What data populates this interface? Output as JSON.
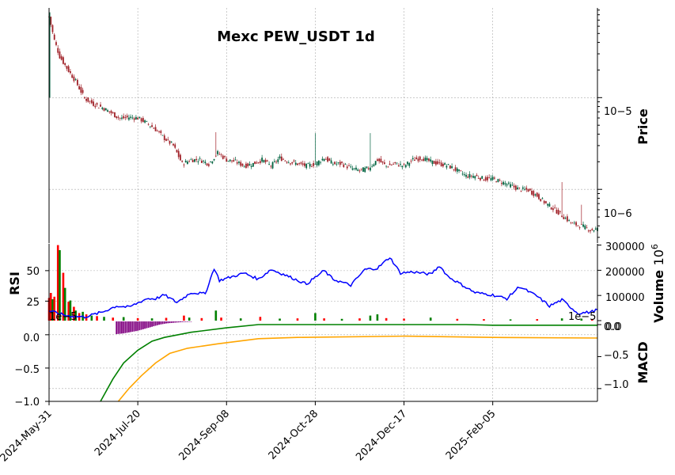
{
  "chart_data": {
    "type": "candlestick",
    "title": "Mexc PEW_USDT 1d",
    "x_tick_labels": [
      "2024-May-31",
      "2024-Jul-20",
      "2024-Sep-08",
      "2024-Oct-28",
      "2024-Dec-17",
      "2025-Feb-05"
    ],
    "price_panel": {
      "ylabel": "Price",
      "scale": "log",
      "ylim": [
        2.6e-07,
        9.5e-05
      ],
      "y_tick_labels": [
        "10−5",
        "10−6"
      ],
      "up_color": "#006340",
      "down_color": "#a02128",
      "series": [
        {
          "day": 0,
          "close": 7.6e-05
        },
        {
          "day": 3,
          "close": 4.2e-05
        },
        {
          "day": 6,
          "close": 2.8e-05
        },
        {
          "day": 10,
          "close": 2.1e-05
        },
        {
          "day": 15,
          "close": 1.5e-05
        },
        {
          "day": 20,
          "close": 9.8e-06
        },
        {
          "day": 25,
          "close": 8.5e-06
        },
        {
          "day": 30,
          "close": 7.8e-06
        },
        {
          "day": 35,
          "close": 6.8e-06
        },
        {
          "day": 40,
          "close": 5.9e-06
        },
        {
          "day": 45,
          "close": 6.1e-06
        },
        {
          "day": 50,
          "close": 6e-06
        },
        {
          "day": 55,
          "close": 5.3e-06
        },
        {
          "day": 60,
          "close": 4.5e-06
        },
        {
          "day": 65,
          "close": 3.6e-06
        },
        {
          "day": 70,
          "close": 3e-06
        },
        {
          "day": 75,
          "close": 1.9e-06
        },
        {
          "day": 80,
          "close": 2.1e-06
        },
        {
          "day": 85,
          "close": 2.1e-06
        },
        {
          "day": 90,
          "close": 1.9e-06
        },
        {
          "day": 95,
          "close": 2.5e-06
        },
        {
          "day": 100,
          "close": 2.1e-06
        },
        {
          "day": 105,
          "close": 2e-06
        },
        {
          "day": 110,
          "close": 1.8e-06
        },
        {
          "day": 115,
          "close": 1.9e-06
        },
        {
          "day": 120,
          "close": 2.1e-06
        },
        {
          "day": 125,
          "close": 1.8e-06
        },
        {
          "day": 130,
          "close": 2.2e-06
        },
        {
          "day": 135,
          "close": 2e-06
        },
        {
          "day": 140,
          "close": 1.9e-06
        },
        {
          "day": 145,
          "close": 1.8e-06
        },
        {
          "day": 150,
          "close": 1.9e-06
        },
        {
          "day": 155,
          "close": 2.2e-06
        },
        {
          "day": 160,
          "close": 1.9e-06
        },
        {
          "day": 165,
          "close": 1.9e-06
        },
        {
          "day": 170,
          "close": 1.7e-06
        },
        {
          "day": 175,
          "close": 1.6e-06
        },
        {
          "day": 180,
          "close": 1.7e-06
        },
        {
          "day": 185,
          "close": 2.1e-06
        },
        {
          "day": 190,
          "close": 1.8e-06
        },
        {
          "day": 195,
          "close": 1.9e-06
        },
        {
          "day": 200,
          "close": 1.8e-06
        },
        {
          "day": 205,
          "close": 2.1e-06
        },
        {
          "day": 210,
          "close": 2.2e-06
        },
        {
          "day": 215,
          "close": 2e-06
        },
        {
          "day": 220,
          "close": 1.9e-06
        },
        {
          "day": 225,
          "close": 1.8e-06
        },
        {
          "day": 230,
          "close": 1.6e-06
        },
        {
          "day": 235,
          "close": 1.4e-06
        },
        {
          "day": 240,
          "close": 1.4e-06
        },
        {
          "day": 245,
          "close": 1.3e-06
        },
        {
          "day": 250,
          "close": 1.3e-06
        },
        {
          "day": 255,
          "close": 1.2e-06
        },
        {
          "day": 260,
          "close": 1.1e-06
        },
        {
          "day": 265,
          "close": 1e-06
        },
        {
          "day": 270,
          "close": 9.8e-07
        },
        {
          "day": 275,
          "close": 8.5e-07
        },
        {
          "day": 280,
          "close": 7e-07
        },
        {
          "day": 285,
          "close": 6e-07
        },
        {
          "day": 290,
          "close": 5e-07
        },
        {
          "day": 295,
          "close": 4.2e-07
        },
        {
          "day": 300,
          "close": 4e-07
        },
        {
          "day": 305,
          "close": 3.6e-07
        },
        {
          "day": 309,
          "close": 3.7e-07
        }
      ],
      "spikes": [
        {
          "day": 94,
          "high": 4.2e-06
        },
        {
          "day": 150,
          "high": 4.1e-06
        },
        {
          "day": 181,
          "high": 4.1e-06
        },
        {
          "day": 289,
          "high": 1.2e-06
        },
        {
          "day": 300,
          "high": 6.8e-07
        }
      ]
    },
    "rsi_panel": {
      "ylabel": "RSI",
      "ylim": [
        9,
        72
      ],
      "y_tick_labels": [
        "25",
        "50"
      ],
      "color": "#0000ff",
      "series": [
        {
          "day": 0,
          "value": 17
        },
        {
          "day": 10,
          "value": 13
        },
        {
          "day": 20,
          "value": 12
        },
        {
          "day": 30,
          "value": 16
        },
        {
          "day": 38,
          "value": 21
        },
        {
          "day": 45,
          "value": 20
        },
        {
          "day": 55,
          "value": 27
        },
        {
          "day": 60,
          "value": 27
        },
        {
          "day": 65,
          "value": 30
        },
        {
          "day": 72,
          "value": 24
        },
        {
          "day": 80,
          "value": 32
        },
        {
          "day": 88,
          "value": 31
        },
        {
          "day": 93,
          "value": 52
        },
        {
          "day": 96,
          "value": 42
        },
        {
          "day": 103,
          "value": 45
        },
        {
          "day": 110,
          "value": 48
        },
        {
          "day": 118,
          "value": 43
        },
        {
          "day": 125,
          "value": 51
        },
        {
          "day": 132,
          "value": 47
        },
        {
          "day": 137,
          "value": 44
        },
        {
          "day": 145,
          "value": 39
        },
        {
          "day": 155,
          "value": 50
        },
        {
          "day": 160,
          "value": 43
        },
        {
          "day": 170,
          "value": 38
        },
        {
          "day": 178,
          "value": 51
        },
        {
          "day": 185,
          "value": 52
        },
        {
          "day": 192,
          "value": 61
        },
        {
          "day": 198,
          "value": 48
        },
        {
          "day": 205,
          "value": 49
        },
        {
          "day": 215,
          "value": 47
        },
        {
          "day": 220,
          "value": 54
        },
        {
          "day": 225,
          "value": 45
        },
        {
          "day": 233,
          "value": 38
        },
        {
          "day": 240,
          "value": 32
        },
        {
          "day": 250,
          "value": 30
        },
        {
          "day": 258,
          "value": 27
        },
        {
          "day": 265,
          "value": 37
        },
        {
          "day": 275,
          "value": 29
        },
        {
          "day": 282,
          "value": 21
        },
        {
          "day": 289,
          "value": 26
        },
        {
          "day": 298,
          "value": 15
        },
        {
          "day": 305,
          "value": 16
        },
        {
          "day": 309,
          "value": 18
        }
      ]
    },
    "volume_panel": {
      "ylabel": "Volume",
      "exponent_label": "10",
      "exponent_power": "6",
      "ylim": [
        0,
        305000
      ],
      "y_tick_labels": [
        "0.0",
        "100000",
        "200000",
        "300000"
      ],
      "up_color": "#008000",
      "down_color": "#ff0000",
      "bars": [
        {
          "day": 0,
          "value": 90000,
          "dir": "down"
        },
        {
          "day": 1,
          "value": 110000,
          "dir": "down"
        },
        {
          "day": 2,
          "value": 85000,
          "dir": "up"
        },
        {
          "day": 3,
          "value": 95000,
          "dir": "down"
        },
        {
          "day": 5,
          "value": 300000,
          "dir": "down"
        },
        {
          "day": 6,
          "value": 280000,
          "dir": "up"
        },
        {
          "day": 8,
          "value": 190000,
          "dir": "down"
        },
        {
          "day": 9,
          "value": 130000,
          "dir": "up"
        },
        {
          "day": 11,
          "value": 75000,
          "dir": "down"
        },
        {
          "day": 12,
          "value": 80000,
          "dir": "up"
        },
        {
          "day": 14,
          "value": 55000,
          "dir": "down"
        },
        {
          "day": 15,
          "value": 40000,
          "dir": "up"
        },
        {
          "day": 17,
          "value": 30000,
          "dir": "down"
        },
        {
          "day": 19,
          "value": 35000,
          "dir": "up"
        },
        {
          "day": 21,
          "value": 25000,
          "dir": "down"
        },
        {
          "day": 24,
          "value": 20000,
          "dir": "up"
        },
        {
          "day": 27,
          "value": 18000,
          "dir": "down"
        },
        {
          "day": 31,
          "value": 15000,
          "dir": "up"
        },
        {
          "day": 36,
          "value": 12000,
          "dir": "down"
        },
        {
          "day": 42,
          "value": 14000,
          "dir": "up"
        },
        {
          "day": 50,
          "value": 10000,
          "dir": "down"
        },
        {
          "day": 58,
          "value": 9000,
          "dir": "up"
        },
        {
          "day": 66,
          "value": 11000,
          "dir": "down"
        },
        {
          "day": 76,
          "value": 20000,
          "dir": "down"
        },
        {
          "day": 79,
          "value": 12000,
          "dir": "up"
        },
        {
          "day": 86,
          "value": 10000,
          "dir": "down"
        },
        {
          "day": 94,
          "value": 40000,
          "dir": "up"
        },
        {
          "day": 97,
          "value": 12000,
          "dir": "down"
        },
        {
          "day": 108,
          "value": 9000,
          "dir": "up"
        },
        {
          "day": 119,
          "value": 15000,
          "dir": "down"
        },
        {
          "day": 130,
          "value": 8000,
          "dir": "up"
        },
        {
          "day": 140,
          "value": 9000,
          "dir": "down"
        },
        {
          "day": 150,
          "value": 30000,
          "dir": "up"
        },
        {
          "day": 155,
          "value": 9000,
          "dir": "down"
        },
        {
          "day": 165,
          "value": 7000,
          "dir": "up"
        },
        {
          "day": 175,
          "value": 9000,
          "dir": "down"
        },
        {
          "day": 181,
          "value": 20000,
          "dir": "up"
        },
        {
          "day": 185,
          "value": 25000,
          "dir": "up"
        },
        {
          "day": 190,
          "value": 10000,
          "dir": "down"
        },
        {
          "day": 200,
          "value": 8000,
          "dir": "down"
        },
        {
          "day": 215,
          "value": 12000,
          "dir": "up"
        },
        {
          "day": 230,
          "value": 7000,
          "dir": "down"
        },
        {
          "day": 245,
          "value": 6000,
          "dir": "down"
        },
        {
          "day": 260,
          "value": 5000,
          "dir": "up"
        },
        {
          "day": 275,
          "value": 6000,
          "dir": "down"
        },
        {
          "day": 289,
          "value": 9000,
          "dir": "up"
        },
        {
          "day": 300,
          "value": 8000,
          "dir": "up"
        },
        {
          "day": 306,
          "value": 5000,
          "dir": "down"
        }
      ]
    },
    "macd_panel": {
      "ylabel": "MACD",
      "left_offset_label": "1e−5",
      "right_offset_label": "1e−5",
      "ylim_left": [
        -1.0,
        0.2
      ],
      "y_tick_labels_left": [
        "−1.0",
        "−0.5",
        "0.0"
      ],
      "ylim_right": [
        -1.2,
        0.05
      ],
      "y_tick_labels_right": [
        "−1.0",
        "−0.5",
        "0.0"
      ],
      "macd_color": "#008000",
      "signal_color": "#ffa500",
      "histogram_color": "#800080",
      "macd": [
        {
          "day": 29,
          "value": -1.2
        },
        {
          "day": 36,
          "value": -0.85
        },
        {
          "day": 42,
          "value": -0.6
        },
        {
          "day": 50,
          "value": -0.4
        },
        {
          "day": 58,
          "value": -0.26
        },
        {
          "day": 65,
          "value": -0.2
        },
        {
          "day": 80,
          "value": -0.12
        },
        {
          "day": 100,
          "value": -0.05
        },
        {
          "day": 118,
          "value": 0.0
        },
        {
          "day": 150,
          "value": 0.0
        },
        {
          "day": 200,
          "value": 0.0
        },
        {
          "day": 235,
          "value": 0.0
        },
        {
          "day": 250,
          "value": -0.01
        },
        {
          "day": 309,
          "value": -0.01
        }
      ],
      "signal": [
        {
          "day": 39,
          "value": -1.2
        },
        {
          "day": 45,
          "value": -1.0
        },
        {
          "day": 52,
          "value": -0.8
        },
        {
          "day": 60,
          "value": -0.6
        },
        {
          "day": 68,
          "value": -0.45
        },
        {
          "day": 78,
          "value": -0.37
        },
        {
          "day": 95,
          "value": -0.3
        },
        {
          "day": 118,
          "value": -0.22
        },
        {
          "day": 140,
          "value": -0.2
        },
        {
          "day": 200,
          "value": -0.18
        },
        {
          "day": 250,
          "value": -0.2
        },
        {
          "day": 309,
          "value": -0.21
        }
      ],
      "histogram": [
        {
          "day": 38,
          "value": 0.19
        },
        {
          "day": 42,
          "value": 0.18
        },
        {
          "day": 46,
          "value": 0.16
        },
        {
          "day": 50,
          "value": 0.14
        },
        {
          "day": 54,
          "value": 0.11
        },
        {
          "day": 58,
          "value": 0.08
        },
        {
          "day": 62,
          "value": 0.05
        },
        {
          "day": 66,
          "value": 0.03
        },
        {
          "day": 70,
          "value": 0.02
        },
        {
          "day": 75,
          "value": 0.01
        },
        {
          "day": 80,
          "value": 0.005
        }
      ]
    }
  }
}
